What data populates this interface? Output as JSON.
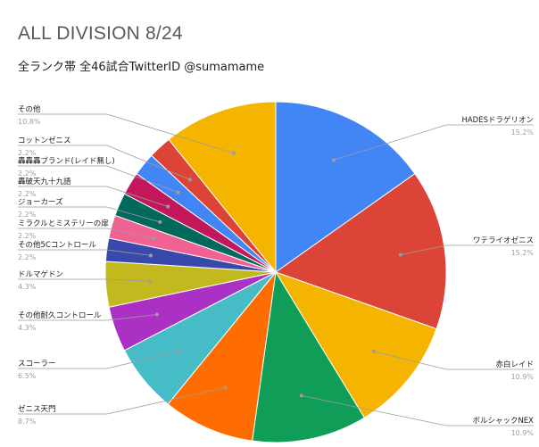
{
  "chart_data": {
    "type": "pie",
    "title": "ALL DIVISION 8/24",
    "subtitle": "全ランク帯 全46試合TwitterID @sumamame",
    "start_angle_deg": 0,
    "direction": "clockwise",
    "slices": [
      {
        "label": "HADESドラゲリオン",
        "value": 15.2,
        "pct_label": "15.2%",
        "color": "#4285f4"
      },
      {
        "label": "ワテライオゼニス",
        "value": 15.2,
        "pct_label": "15.2%",
        "color": "#db4437"
      },
      {
        "label": "赤白レイド",
        "value": 10.9,
        "pct_label": "10.9%",
        "color": "#f4b400"
      },
      {
        "label": "ボルシャックNEX",
        "value": 10.9,
        "pct_label": "10.9%",
        "color": "#0f9d58"
      },
      {
        "label": "ゼニス天門",
        "value": 8.7,
        "pct_label": "8.7%",
        "color": "#ff6d01"
      },
      {
        "label": "スコーラー",
        "value": 6.5,
        "pct_label": "6.5%",
        "color": "#46bdc6"
      },
      {
        "label": "その他耐久コントロール",
        "value": 4.3,
        "pct_label": "4.3%",
        "color": "#ab30c4"
      },
      {
        "label": "ドルマゲドン",
        "value": 4.3,
        "pct_label": "4.3%",
        "color": "#c2b91e"
      },
      {
        "label": "その他5Cコントロール",
        "value": 2.2,
        "pct_label": "2.2%",
        "color": "#3949ab"
      },
      {
        "label": "ミラクルとミステリーの扉",
        "value": 2.2,
        "pct_label": "2.2%",
        "color": "#f06292"
      },
      {
        "label": "ジョーカーズ",
        "value": 2.2,
        "pct_label": "2.2%",
        "color": "#00695c"
      },
      {
        "label": "轟破天九十九語",
        "value": 2.2,
        "pct_label": "2.2%",
        "color": "#c2185b"
      },
      {
        "label": "轟轟轟ブランド(レイド無し)",
        "value": 2.2,
        "pct_label": "2.2%",
        "color": "#4285f4"
      },
      {
        "label": "コットンゼニス",
        "value": 2.2,
        "pct_label": "2.2%",
        "color": "#db4437"
      },
      {
        "label": "その他",
        "value": 10.8,
        "pct_label": "10.8%",
        "color": "#f4b400"
      }
    ]
  }
}
